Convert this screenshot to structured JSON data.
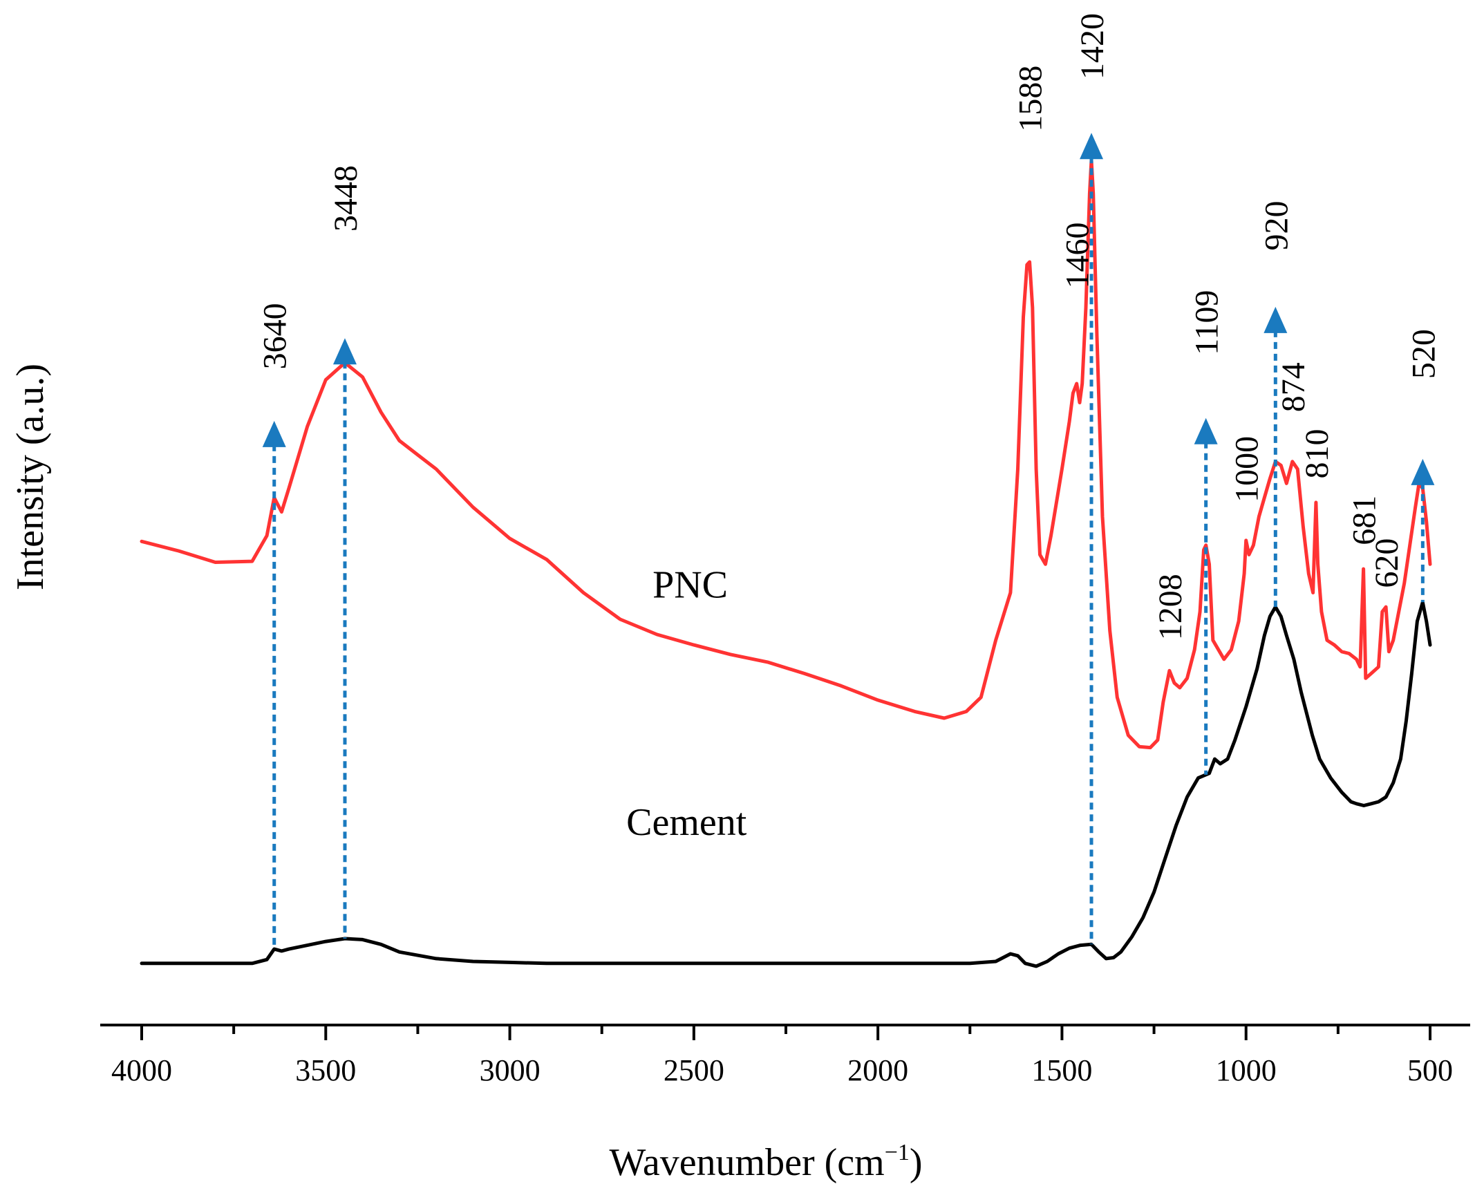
{
  "chart_data": {
    "type": "line",
    "xlabel": "Wavenumber (cm",
    "xlabel_sup": "−1",
    "xlabel_close": ")",
    "ylabel": "Intensity (a.u.)",
    "xlim": [
      4000,
      500
    ],
    "x_ticks": [
      4000,
      3500,
      3000,
      2500,
      2000,
      1500,
      1000,
      500
    ],
    "x_minor_step": 250,
    "ylim": [
      0,
      100
    ],
    "series": [
      {
        "name": "PNC",
        "color": "#ff3333",
        "points": [
          [
            4000,
            47.4
          ],
          [
            3900,
            46.4
          ],
          [
            3800,
            45.2
          ],
          [
            3700,
            45.3
          ],
          [
            3660,
            48.0
          ],
          [
            3640,
            52.0
          ],
          [
            3620,
            50.5
          ],
          [
            3600,
            53.0
          ],
          [
            3550,
            59.5
          ],
          [
            3500,
            64.4
          ],
          [
            3448,
            66.2
          ],
          [
            3400,
            64.7
          ],
          [
            3350,
            61.0
          ],
          [
            3300,
            58.0
          ],
          [
            3250,
            56.5
          ],
          [
            3200,
            55.0
          ],
          [
            3100,
            51.0
          ],
          [
            3000,
            47.7
          ],
          [
            2900,
            45.5
          ],
          [
            2800,
            42.0
          ],
          [
            2700,
            39.2
          ],
          [
            2600,
            37.6
          ],
          [
            2500,
            36.5
          ],
          [
            2400,
            35.5
          ],
          [
            2300,
            34.7
          ],
          [
            2200,
            33.5
          ],
          [
            2100,
            32.2
          ],
          [
            2000,
            30.7
          ],
          [
            1900,
            29.5
          ],
          [
            1820,
            28.8
          ],
          [
            1760,
            29.5
          ],
          [
            1720,
            31.0
          ],
          [
            1680,
            37.0
          ],
          [
            1640,
            42.0
          ],
          [
            1620,
            55.0
          ],
          [
            1605,
            71.0
          ],
          [
            1595,
            76.5
          ],
          [
            1588,
            76.8
          ],
          [
            1580,
            72.0
          ],
          [
            1570,
            55.0
          ],
          [
            1560,
            46.0
          ],
          [
            1545,
            45.0
          ],
          [
            1530,
            48.0
          ],
          [
            1500,
            55.0
          ],
          [
            1480,
            60.0
          ],
          [
            1470,
            63.0
          ],
          [
            1460,
            64.0
          ],
          [
            1452,
            62.0
          ],
          [
            1445,
            64.0
          ],
          [
            1435,
            72.0
          ],
          [
            1425,
            84.0
          ],
          [
            1420,
            87.5
          ],
          [
            1415,
            84.0
          ],
          [
            1405,
            69.0
          ],
          [
            1390,
            50.0
          ],
          [
            1370,
            38.0
          ],
          [
            1350,
            31.0
          ],
          [
            1320,
            27.0
          ],
          [
            1290,
            25.8
          ],
          [
            1260,
            25.7
          ],
          [
            1240,
            26.5
          ],
          [
            1225,
            30.5
          ],
          [
            1208,
            33.8
          ],
          [
            1195,
            32.5
          ],
          [
            1180,
            32.0
          ],
          [
            1160,
            33.0
          ],
          [
            1140,
            36.0
          ],
          [
            1125,
            40.0
          ],
          [
            1115,
            46.5
          ],
          [
            1109,
            47.0
          ],
          [
            1100,
            45.0
          ],
          [
            1090,
            37.0
          ],
          [
            1075,
            36.0
          ],
          [
            1060,
            35.0
          ],
          [
            1040,
            36.0
          ],
          [
            1020,
            39.0
          ],
          [
            1005,
            44.0
          ],
          [
            1000,
            47.5
          ],
          [
            992,
            46.0
          ],
          [
            980,
            47.0
          ],
          [
            965,
            50.0
          ],
          [
            950,
            52.0
          ],
          [
            935,
            54.0
          ],
          [
            920,
            55.8
          ],
          [
            905,
            55.4
          ],
          [
            890,
            53.5
          ],
          [
            874,
            55.8
          ],
          [
            860,
            55.0
          ],
          [
            845,
            49.0
          ],
          [
            830,
            44.0
          ],
          [
            818,
            42.0
          ],
          [
            810,
            51.5
          ],
          [
            805,
            45.0
          ],
          [
            795,
            40.0
          ],
          [
            780,
            37.0
          ],
          [
            760,
            36.5
          ],
          [
            740,
            35.8
          ],
          [
            720,
            35.6
          ],
          [
            700,
            35.0
          ],
          [
            690,
            34.2
          ],
          [
            681,
            44.5
          ],
          [
            675,
            33.0
          ],
          [
            660,
            33.5
          ],
          [
            640,
            34.2
          ],
          [
            630,
            40.0
          ],
          [
            620,
            40.5
          ],
          [
            612,
            35.8
          ],
          [
            600,
            37.0
          ],
          [
            585,
            40.0
          ],
          [
            570,
            43.0
          ],
          [
            555,
            47.0
          ],
          [
            540,
            51.0
          ],
          [
            530,
            53.5
          ],
          [
            520,
            53.0
          ],
          [
            510,
            49.5
          ],
          [
            500,
            45.0
          ]
        ]
      },
      {
        "name": "Cement",
        "color": "#000000",
        "points": [
          [
            4000,
            3.0
          ],
          [
            3900,
            3.0
          ],
          [
            3800,
            3.0
          ],
          [
            3700,
            3.0
          ],
          [
            3660,
            3.4
          ],
          [
            3640,
            4.5
          ],
          [
            3620,
            4.3
          ],
          [
            3600,
            4.5
          ],
          [
            3550,
            4.9
          ],
          [
            3500,
            5.3
          ],
          [
            3448,
            5.6
          ],
          [
            3400,
            5.5
          ],
          [
            3350,
            5.0
          ],
          [
            3300,
            4.2
          ],
          [
            3200,
            3.5
          ],
          [
            3100,
            3.2
          ],
          [
            3000,
            3.1
          ],
          [
            2900,
            3.0
          ],
          [
            2700,
            3.0
          ],
          [
            2500,
            3.0
          ],
          [
            2300,
            3.0
          ],
          [
            2100,
            3.0
          ],
          [
            1900,
            3.0
          ],
          [
            1750,
            3.0
          ],
          [
            1680,
            3.2
          ],
          [
            1640,
            4.0
          ],
          [
            1620,
            3.8
          ],
          [
            1600,
            3.0
          ],
          [
            1570,
            2.7
          ],
          [
            1540,
            3.2
          ],
          [
            1510,
            4.0
          ],
          [
            1480,
            4.6
          ],
          [
            1450,
            4.9
          ],
          [
            1420,
            5.0
          ],
          [
            1400,
            4.2
          ],
          [
            1380,
            3.5
          ],
          [
            1360,
            3.6
          ],
          [
            1340,
            4.2
          ],
          [
            1310,
            5.8
          ],
          [
            1280,
            7.8
          ],
          [
            1250,
            10.5
          ],
          [
            1220,
            14.0
          ],
          [
            1190,
            17.5
          ],
          [
            1160,
            20.5
          ],
          [
            1130,
            22.5
          ],
          [
            1100,
            23.0
          ],
          [
            1085,
            24.5
          ],
          [
            1070,
            24.0
          ],
          [
            1050,
            24.5
          ],
          [
            1030,
            26.5
          ],
          [
            1000,
            30.0
          ],
          [
            970,
            34.0
          ],
          [
            950,
            37.5
          ],
          [
            935,
            39.5
          ],
          [
            920,
            40.5
          ],
          [
            905,
            39.5
          ],
          [
            890,
            37.5
          ],
          [
            870,
            35.0
          ],
          [
            850,
            31.5
          ],
          [
            820,
            27.0
          ],
          [
            800,
            24.5
          ],
          [
            770,
            22.5
          ],
          [
            740,
            21.0
          ],
          [
            715,
            20.0
          ],
          [
            700,
            19.8
          ],
          [
            680,
            19.6
          ],
          [
            660,
            19.8
          ],
          [
            640,
            20.0
          ],
          [
            620,
            20.5
          ],
          [
            600,
            22.0
          ],
          [
            580,
            24.5
          ],
          [
            565,
            28.5
          ],
          [
            550,
            33.5
          ],
          [
            535,
            39.0
          ],
          [
            520,
            41.0
          ],
          [
            510,
            39.0
          ],
          [
            500,
            36.5
          ]
        ]
      }
    ],
    "series_labels": [
      {
        "text": "PNC",
        "x": 2510,
        "y": 41.5
      },
      {
        "text": "Cement",
        "x": 2520,
        "y": 16.5
      }
    ],
    "markers": [
      {
        "x": 3640,
        "label": "3640",
        "label_y": 65.5,
        "arrow_y": 59.5,
        "to": "Cement"
      },
      {
        "x": 3448,
        "label": "3448",
        "label_y": 80.0,
        "arrow_y": 68.2,
        "to": "Cement"
      },
      {
        "x": 1420,
        "label": "1420",
        "label_y": 96.0,
        "arrow_y": 89.8,
        "to": "Cement"
      },
      {
        "x": 1109,
        "label": "1109",
        "label_y": 67.0,
        "arrow_y": 59.8,
        "to": "Cement"
      },
      {
        "x": 920,
        "label": "920",
        "label_y": 78.0,
        "arrow_y": 71.5,
        "to": "Cement"
      },
      {
        "x": 520,
        "label": "520",
        "label_y": 64.5,
        "arrow_y": 55.5,
        "to": "Cement"
      }
    ],
    "marker_color": "#1a7abf",
    "peak_labels": [
      {
        "text": "1588",
        "x": 1588,
        "y": 90.5
      },
      {
        "text": "1460",
        "x": 1460,
        "y": 74.0
      },
      {
        "text": "1208",
        "x": 1208,
        "y": 37.0
      },
      {
        "text": "1000",
        "x": 1000,
        "y": 51.5
      },
      {
        "text": "874",
        "x": 874,
        "y": 61.0
      },
      {
        "text": "810",
        "x": 810,
        "y": 54.0
      },
      {
        "text": "681",
        "x": 681,
        "y": 47.0
      },
      {
        "text": "620",
        "x": 620,
        "y": 42.5
      }
    ]
  }
}
